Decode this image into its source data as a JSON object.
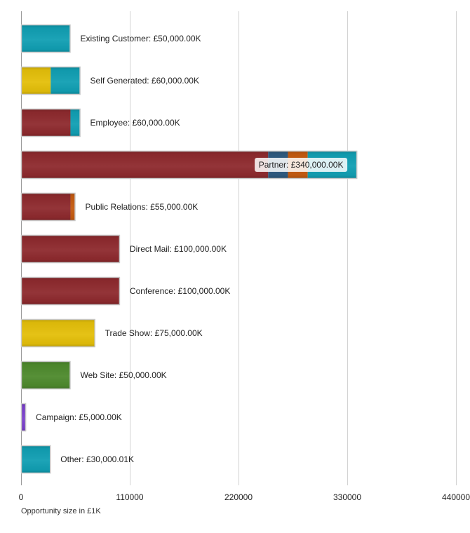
{
  "chart_data": {
    "type": "bar",
    "orientation": "horizontal",
    "stacked": true,
    "xlabel": "Opportunity size in £1K",
    "xlim": [
      0,
      440000
    ],
    "x_ticks": [
      "0",
      "110000",
      "220000",
      "330000",
      "440000"
    ],
    "grid": true,
    "colors": {
      "red": "#8e2a2e",
      "navy": "#2e5a80",
      "orange": "#c45a10",
      "teal": "#119fb3",
      "yellow": "#e4bf0a",
      "green": "#4e8a2d",
      "purple": "#7a3fcc"
    },
    "bars": [
      {
        "label": "Existing Customer: £50,000.00K",
        "segments": [
          {
            "value": 50000,
            "color": "teal"
          }
        ]
      },
      {
        "label": "Self Generated: £60,000.00K",
        "segments": [
          {
            "value": 30000,
            "color": "yellow"
          },
          {
            "value": 30000,
            "color": "teal"
          }
        ]
      },
      {
        "label": "Employee: £60,000.00K",
        "segments": [
          {
            "value": 50000,
            "color": "red"
          },
          {
            "value": 10000,
            "color": "teal"
          }
        ]
      },
      {
        "label": "Partner: £340,000.00K",
        "label_inside": true,
        "segments": [
          {
            "value": 250000,
            "color": "red"
          },
          {
            "value": 20000,
            "color": "navy"
          },
          {
            "value": 20000,
            "color": "orange"
          },
          {
            "value": 50000,
            "color": "teal"
          }
        ]
      },
      {
        "label": "Public Relations: £55,000.00K",
        "segments": [
          {
            "value": 50000,
            "color": "red"
          },
          {
            "value": 5000,
            "color": "orange"
          }
        ]
      },
      {
        "label": "Direct Mail: £100,000.00K",
        "segments": [
          {
            "value": 100000,
            "color": "red"
          }
        ]
      },
      {
        "label": "Conference: £100,000.00K",
        "segments": [
          {
            "value": 100000,
            "color": "red"
          }
        ]
      },
      {
        "label": "Trade Show: £75,000.00K",
        "segments": [
          {
            "value": 75000,
            "color": "yellow"
          }
        ]
      },
      {
        "label": "Web Site: £50,000.00K",
        "segments": [
          {
            "value": 50000,
            "color": "green"
          }
        ]
      },
      {
        "label": "Campaign: £5,000.00K",
        "segments": [
          {
            "value": 5000,
            "color": "purple"
          }
        ]
      },
      {
        "label": "Other: £30,000.01K",
        "segments": [
          {
            "value": 30000.01,
            "color": "teal"
          }
        ]
      }
    ]
  }
}
